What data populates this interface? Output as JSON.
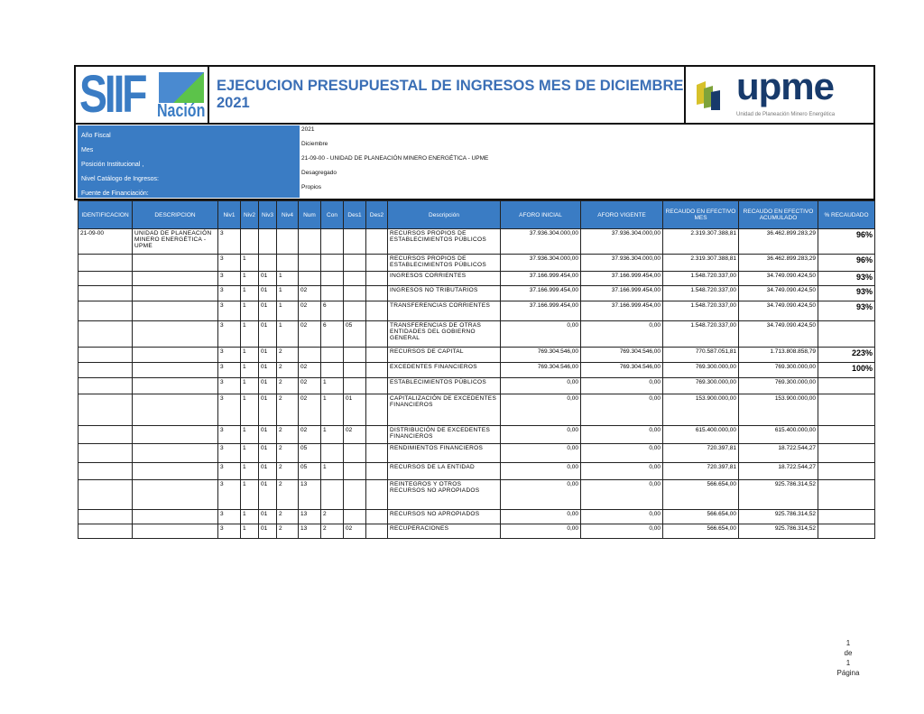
{
  "header": {
    "logo_left": "SIIF Nación",
    "title": "EJECUCION PRESUPUESTAL DE INGRESOS MES DE DICIEMBRE 2021",
    "logo_right": "upme",
    "logo_right_sub": "Unidad de Planeación Minero Energética"
  },
  "info": [
    {
      "label": "Año Fiscal",
      "value": "2021"
    },
    {
      "label": "Mes",
      "value": "Diciembre"
    },
    {
      "label": "Posición Institucional ,",
      "value": "21-09-00 - UNIDAD DE PLANEACIÓN MINERO ENERGÉTICA - UPME"
    },
    {
      "label": "Nivel Catálogo de Ingresos:",
      "value": "Desagregado"
    },
    {
      "label": "Fuente de Financiación:",
      "value": "Propios"
    }
  ],
  "table": {
    "columns": [
      "IDENTIFICACION",
      "DESCRIPCION",
      "Niv1",
      "Niv2",
      "Niv3",
      "Niv4",
      "Num",
      "Con",
      "Des1",
      "Des2",
      "Descripción",
      "AFORO INICIAL",
      "AFORO VIGENTE",
      "RECAUDO EN EFECTIVO MES",
      "RECAUDO EN EFECTIVO ACUMULADO",
      "% RECAUDADO"
    ],
    "rows": [
      [
        "21-09-00",
        "UNIDAD DE PLANEACIÓN MINERO ENERGÉTICA - UPME",
        "3",
        "",
        "",
        "",
        "",
        "",
        "",
        "",
        "RECURSOS PROPIOS DE ESTABLECIMIENTOS PÚBLICOS",
        "37.936.304.000,00",
        "37.936.304.000,00",
        "2.319.307.388,81",
        "36.462.899.283,29",
        "96%"
      ],
      [
        "",
        "",
        "3",
        "1",
        "",
        "",
        "",
        "",
        "",
        "",
        "RECURSOS PROPIOS DE ESTABLECIMIENTOS PÚBLICOS",
        "37.936.304.000,00",
        "37.936.304.000,00",
        "2.319.307.388,81",
        "36.462.899.283,29",
        "96%"
      ],
      [
        "",
        "",
        "3",
        "1",
        "01",
        "1",
        "",
        "",
        "",
        "",
        "INGRESOS CORRIENTES",
        "37.166.999.454,00",
        "37.166.999.454,00",
        "1.548.720.337,00",
        "34.749.090.424,50",
        "93%"
      ],
      [
        "",
        "",
        "3",
        "1",
        "01",
        "1",
        "02",
        "",
        "",
        "",
        "INGRESOS NO TRIBUTARIOS",
        "37.166.999.454,00",
        "37.166.999.454,00",
        "1.548.720.337,00",
        "34.749.090.424,50",
        "93%"
      ],
      [
        "",
        "",
        "3",
        "1",
        "01",
        "1",
        "02",
        "6",
        "",
        "",
        "TRANSFERENCIAS CORRIENTES",
        "37.166.999.454,00",
        "37.166.999.454,00",
        "1.548.720.337,00",
        "34.749.090.424,50",
        "93%"
      ],
      [
        "",
        "",
        "3",
        "1",
        "01",
        "1",
        "02",
        "6",
        "05",
        "",
        "TRANSFERENCIAS DE OTRAS ENTIDADES DEL GOBIERNO GENERAL",
        "0,00",
        "0,00",
        "1.548.720.337,00",
        "34.749.090.424,50",
        ""
      ],
      [
        "",
        "",
        "3",
        "1",
        "01",
        "2",
        "",
        "",
        "",
        "",
        "RECURSOS DE CAPITAL",
        "769.304.546,00",
        "769.304.546,00",
        "770.587.051,81",
        "1.713.808.858,79",
        "223%"
      ],
      [
        "",
        "",
        "3",
        "1",
        "01",
        "2",
        "02",
        "",
        "",
        "",
        "EXCEDENTES FINANCIEROS",
        "769.304.546,00",
        "769.304.546,00",
        "769.300.000,00",
        "769.300.000,00",
        "100%"
      ],
      [
        "",
        "",
        "3",
        "1",
        "01",
        "2",
        "02",
        "1",
        "",
        "",
        "ESTABLECIMIENTOS PÚBLICOS",
        "0,00",
        "0,00",
        "769.300.000,00",
        "769.300.000,00",
        ""
      ],
      [
        "",
        "",
        "3",
        "1",
        "01",
        "2",
        "02",
        "1",
        "01",
        "",
        "CAPITALIZACIÓN DE EXCEDENTES FINANCIEROS",
        "0,00",
        "0,00",
        "153.900.000,00",
        "153.900.000,00",
        ""
      ],
      [
        "",
        "",
        "3",
        "1",
        "01",
        "2",
        "02",
        "1",
        "02",
        "",
        "DISTRIBUCIÓN DE EXCEDENTES FINANCIEROS",
        "0,00",
        "0,00",
        "615.400.000,00",
        "615.400.000,00",
        ""
      ],
      [
        "",
        "",
        "3",
        "1",
        "01",
        "2",
        "05",
        "",
        "",
        "",
        "RENDIMIENTOS FINANCIEROS",
        "0,00",
        "0,00",
        "720.397,81",
        "18.722.544,27",
        ""
      ],
      [
        "",
        "",
        "3",
        "1",
        "01",
        "2",
        "05",
        "1",
        "",
        "",
        "RECURSOS DE LA ENTIDAD",
        "0,00",
        "0,00",
        "720.397,81",
        "18.722.544,27",
        ""
      ],
      [
        "",
        "",
        "3",
        "1",
        "01",
        "2",
        "13",
        "",
        "",
        "",
        "REINTEGROS Y OTROS RECURSOS NO APROPIADOS",
        "0,00",
        "0,00",
        "566.654,00",
        "925.786.314,52",
        ""
      ],
      [
        "",
        "",
        "3",
        "1",
        "01",
        "2",
        "13",
        "2",
        "",
        "",
        "RECURSOS NO APROPIADOS",
        "0,00",
        "0,00",
        "566.654,00",
        "925.786.314,52",
        ""
      ],
      [
        "",
        "",
        "3",
        "1",
        "01",
        "2",
        "13",
        "2",
        "02",
        "",
        "RECUPERACIONES",
        "0,00",
        "0,00",
        "566.654,00",
        "925.786.314,52",
        ""
      ]
    ]
  },
  "footer": {
    "page": "1",
    "of": "de",
    "total": "1",
    "label": "Página"
  },
  "colors": {
    "header_blue": "#3a7cc4",
    "title_blue": "#3b6fb6",
    "upme_navy": "#173a6b"
  }
}
